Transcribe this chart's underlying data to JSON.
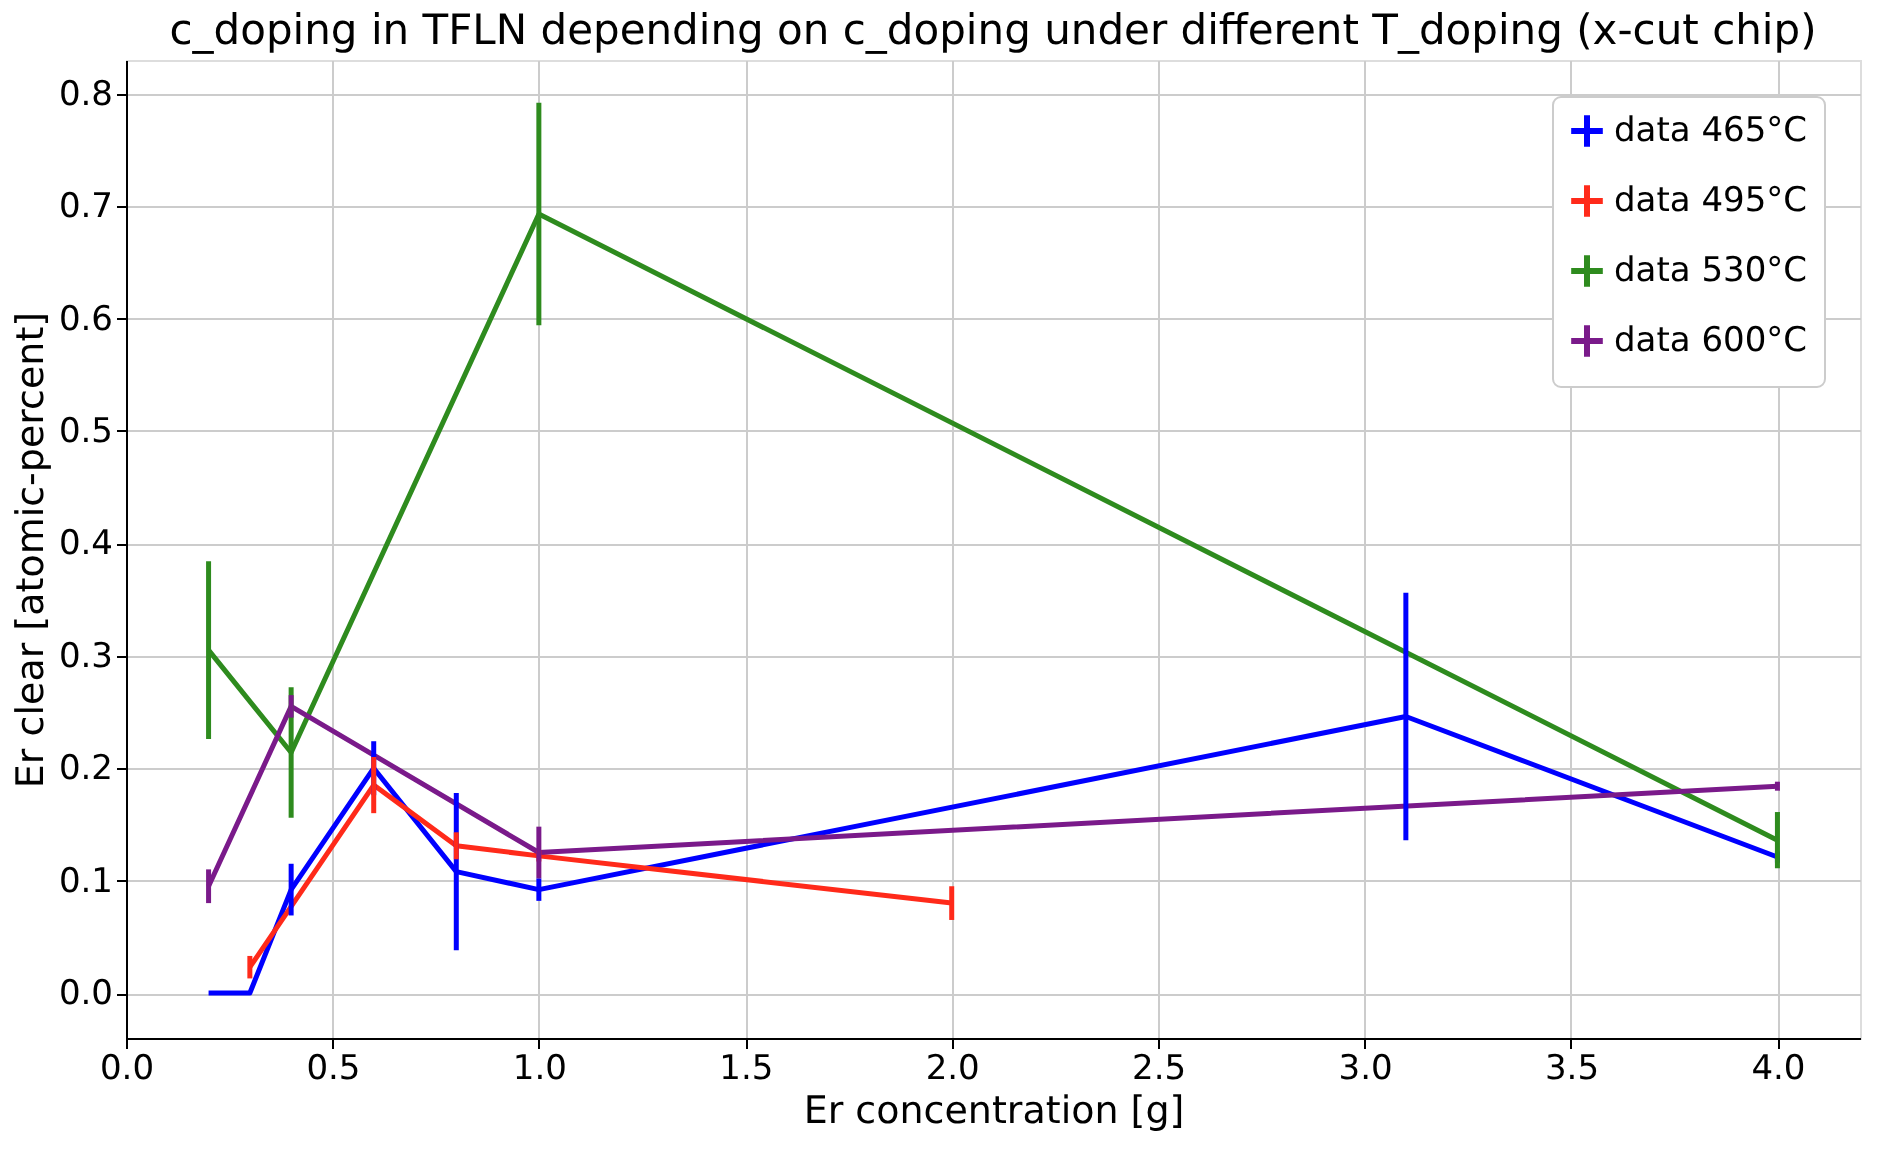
{
  "chart_data": {
    "type": "line",
    "title": "c_doping in TFLN depending on c_doping under different T_doping (x-cut chip)",
    "xlabel": "Er concentration [g]",
    "ylabel": "Er clear [atomic-percent]",
    "series": [
      {
        "name": "data 465°C",
        "color": "#0000ff",
        "x": [
          0.2,
          0.3,
          0.4,
          0.6,
          0.8,
          1.0,
          3.1,
          4.0
        ],
        "values": [
          0.0,
          0.0,
          0.092,
          0.2,
          0.108,
          0.092,
          0.246,
          0.121
        ],
        "errors": [
          null,
          null,
          0.023,
          0.024,
          0.07,
          0.01,
          0.11,
          0.005
        ]
      },
      {
        "name": "data 495°C",
        "color": "#ff2a1a",
        "x": [
          0.3,
          0.6,
          0.8,
          1.0,
          2.0
        ],
        "values": [
          0.023,
          0.185,
          0.131,
          0.122,
          0.08
        ],
        "errors": [
          0.01,
          0.025,
          0.012,
          0.005,
          0.015
        ]
      },
      {
        "name": "data 530°C",
        "color": "#2e8b1e",
        "x": [
          0.2,
          0.4,
          1.0,
          4.0
        ],
        "values": [
          0.305,
          0.214,
          0.693,
          0.136
        ],
        "errors": [
          0.079,
          0.058,
          0.099,
          0.025
        ]
      },
      {
        "name": "data 600°C",
        "color": "#7a1a8a",
        "x": [
          0.2,
          0.4,
          1.0,
          4.0
        ],
        "values": [
          0.095,
          0.255,
          0.125,
          0.184
        ],
        "errors": [
          0.015,
          0.01,
          0.023,
          0.004
        ]
      }
    ],
    "xlim": [
      0,
      4.2
    ],
    "ylim": [
      -0.04,
      0.83
    ],
    "xticks": [
      {
        "value": 0,
        "label": "0.0"
      },
      0.5,
      {
        "value": 1,
        "label": "1.0"
      },
      1.5,
      {
        "value": 2,
        "label": "2.0"
      },
      2.5,
      {
        "value": 3,
        "label": "3.0"
      },
      3.5,
      {
        "value": 4,
        "label": "4.0"
      }
    ],
    "yticks": [
      {
        "value": 0,
        "label": "0.0"
      },
      0.1,
      0.2,
      0.3,
      0.4,
      0.5,
      0.6,
      0.7,
      0.8
    ],
    "grid": true,
    "legend": "top right",
    "marker": "none",
    "line_style": "solid"
  }
}
